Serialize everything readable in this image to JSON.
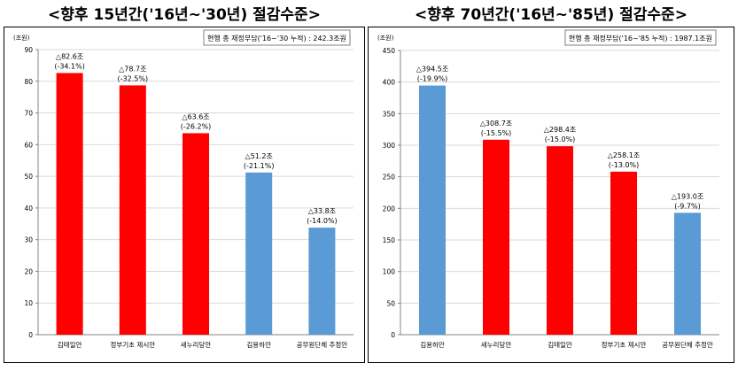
{
  "colors": {
    "red": "#ff0000",
    "blue": "#5b9bd5",
    "grid": "#d9d9d9",
    "axis": "#868686",
    "text": "#000000"
  },
  "chart_data": [
    {
      "type": "bar",
      "title": "<향후 15년간('16년~'30년) 절감수준>",
      "unit": "(조원)",
      "note": "현행 총 재정부담('16~'30 누적) : 242.3조원",
      "ylim": [
        0,
        90
      ],
      "yticks": [
        "0",
        "10",
        "20",
        "30",
        "40",
        "50",
        "60",
        "70",
        "80",
        "90"
      ],
      "grid": true,
      "categories": [
        "김태일안",
        "정부기초 제시안",
        "새누리당안",
        "김용하안",
        "공무원단체 추정안"
      ],
      "values": [
        82.6,
        78.7,
        63.6,
        51.2,
        33.8
      ],
      "bar_colors": [
        "red",
        "red",
        "red",
        "blue",
        "blue"
      ],
      "labels": [
        [
          "△82.6조",
          "(-34.1%)"
        ],
        [
          "△78.7조",
          "(-32.5%)"
        ],
        [
          "△63.6조",
          "(-26.2%)"
        ],
        [
          "△51.2조",
          "(-21.1%)"
        ],
        [
          "△33.8조",
          "(-14.0%)"
        ]
      ]
    },
    {
      "type": "bar",
      "title": "<향후 70년간('16년~'85년) 절감수준>",
      "unit": "(조원)",
      "note": "현행 총 재정부담('16~'85 누적) : 1987.1조원",
      "ylim": [
        0,
        450
      ],
      "yticks": [
        "0",
        "50",
        "100",
        "150",
        "200",
        "250",
        "300",
        "350",
        "400",
        "450"
      ],
      "grid": true,
      "categories": [
        "김용하안",
        "새누리당안",
        "김태일안",
        "정부기초 제시안",
        "공무원단체 추정안"
      ],
      "values": [
        394.5,
        308.7,
        298.4,
        258.1,
        193.0
      ],
      "bar_colors": [
        "blue",
        "red",
        "red",
        "red",
        "blue"
      ],
      "labels": [
        [
          "△394.5조",
          "(-19.9%)"
        ],
        [
          "△308.7조",
          "(-15.5%)"
        ],
        [
          "△298.4조",
          "(-15.0%)"
        ],
        [
          "△258.1조",
          "(-13.0%)"
        ],
        [
          "△193.0조",
          "(-9.7%)"
        ]
      ]
    }
  ]
}
